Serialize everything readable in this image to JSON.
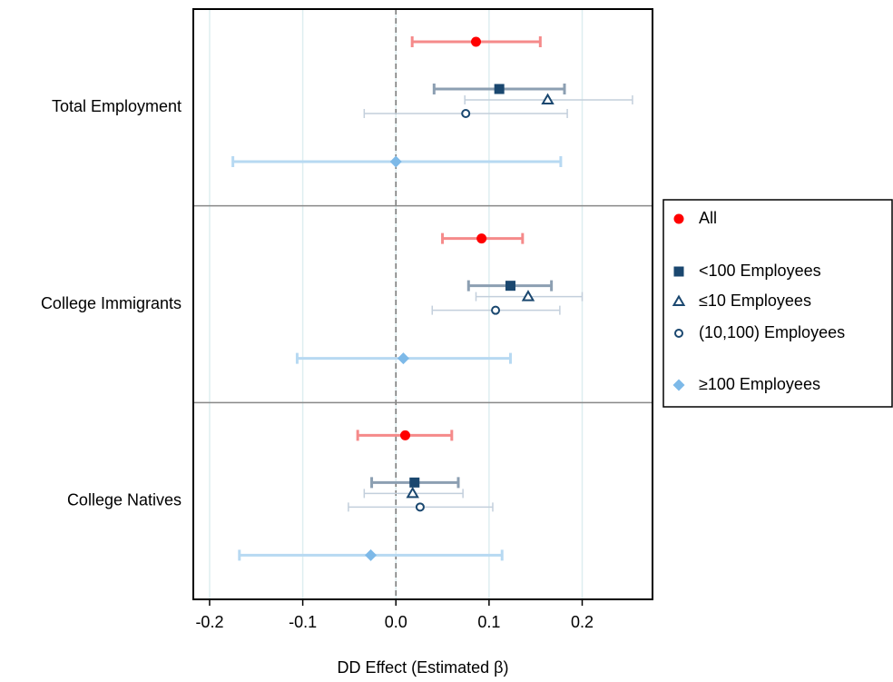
{
  "chart_data": {
    "type": "coefplot",
    "xlabel": "DD Effect (Estimated β)",
    "categories": [
      "Total Employment",
      "College Immigrants",
      "College Natives"
    ],
    "xlim": [
      -0.2175,
      0.2755
    ],
    "xticks": [
      -0.2,
      -0.1,
      {
        "value": 0,
        "label": "0.0"
      },
      0.1,
      0.2
    ],
    "grid": true,
    "reference_line": 0,
    "legend": "right",
    "series": [
      {
        "name": "All",
        "marker": "circle",
        "color": "#ff0000",
        "bar_color": "#f58a8a",
        "values": [
          0.086,
          0.092,
          0.01
        ],
        "lo": [
          0.0175,
          0.05,
          -0.041
        ],
        "hi": [
          0.155,
          0.136,
          0.06
        ]
      },
      {
        "name": "<100 Employees",
        "marker": "square",
        "color": "#1a476f",
        "bar_color": "#8c9fb2",
        "values": [
          0.111,
          0.123,
          0.02
        ],
        "lo": [
          0.041,
          0.078,
          -0.026
        ],
        "hi": [
          0.181,
          0.167,
          0.067
        ]
      },
      {
        "name": "≤10 Employees",
        "marker": "triangle-open",
        "color": "#1a476f",
        "bar_color": "#c3cfdc",
        "values": [
          0.163,
          0.142,
          0.018
        ],
        "lo": [
          0.074,
          0.086,
          -0.034
        ],
        "hi": [
          0.254,
          0.2,
          0.072
        ]
      },
      {
        "name": "(10,100) Employees",
        "marker": "circle-open",
        "color": "#1a476f",
        "bar_color": "#c3cfdc",
        "values": [
          0.075,
          0.107,
          0.026
        ],
        "lo": [
          -0.034,
          0.039,
          -0.051
        ],
        "hi": [
          0.184,
          0.176,
          0.104
        ]
      },
      {
        "name": "≥100 Employees",
        "marker": "diamond",
        "color": "#7db9e8",
        "bar_color": "#b7d9f2",
        "values": [
          0.0,
          0.008,
          -0.027
        ],
        "lo": [
          -0.175,
          -0.106,
          -0.168
        ],
        "hi": [
          0.177,
          0.123,
          0.114
        ]
      }
    ]
  }
}
